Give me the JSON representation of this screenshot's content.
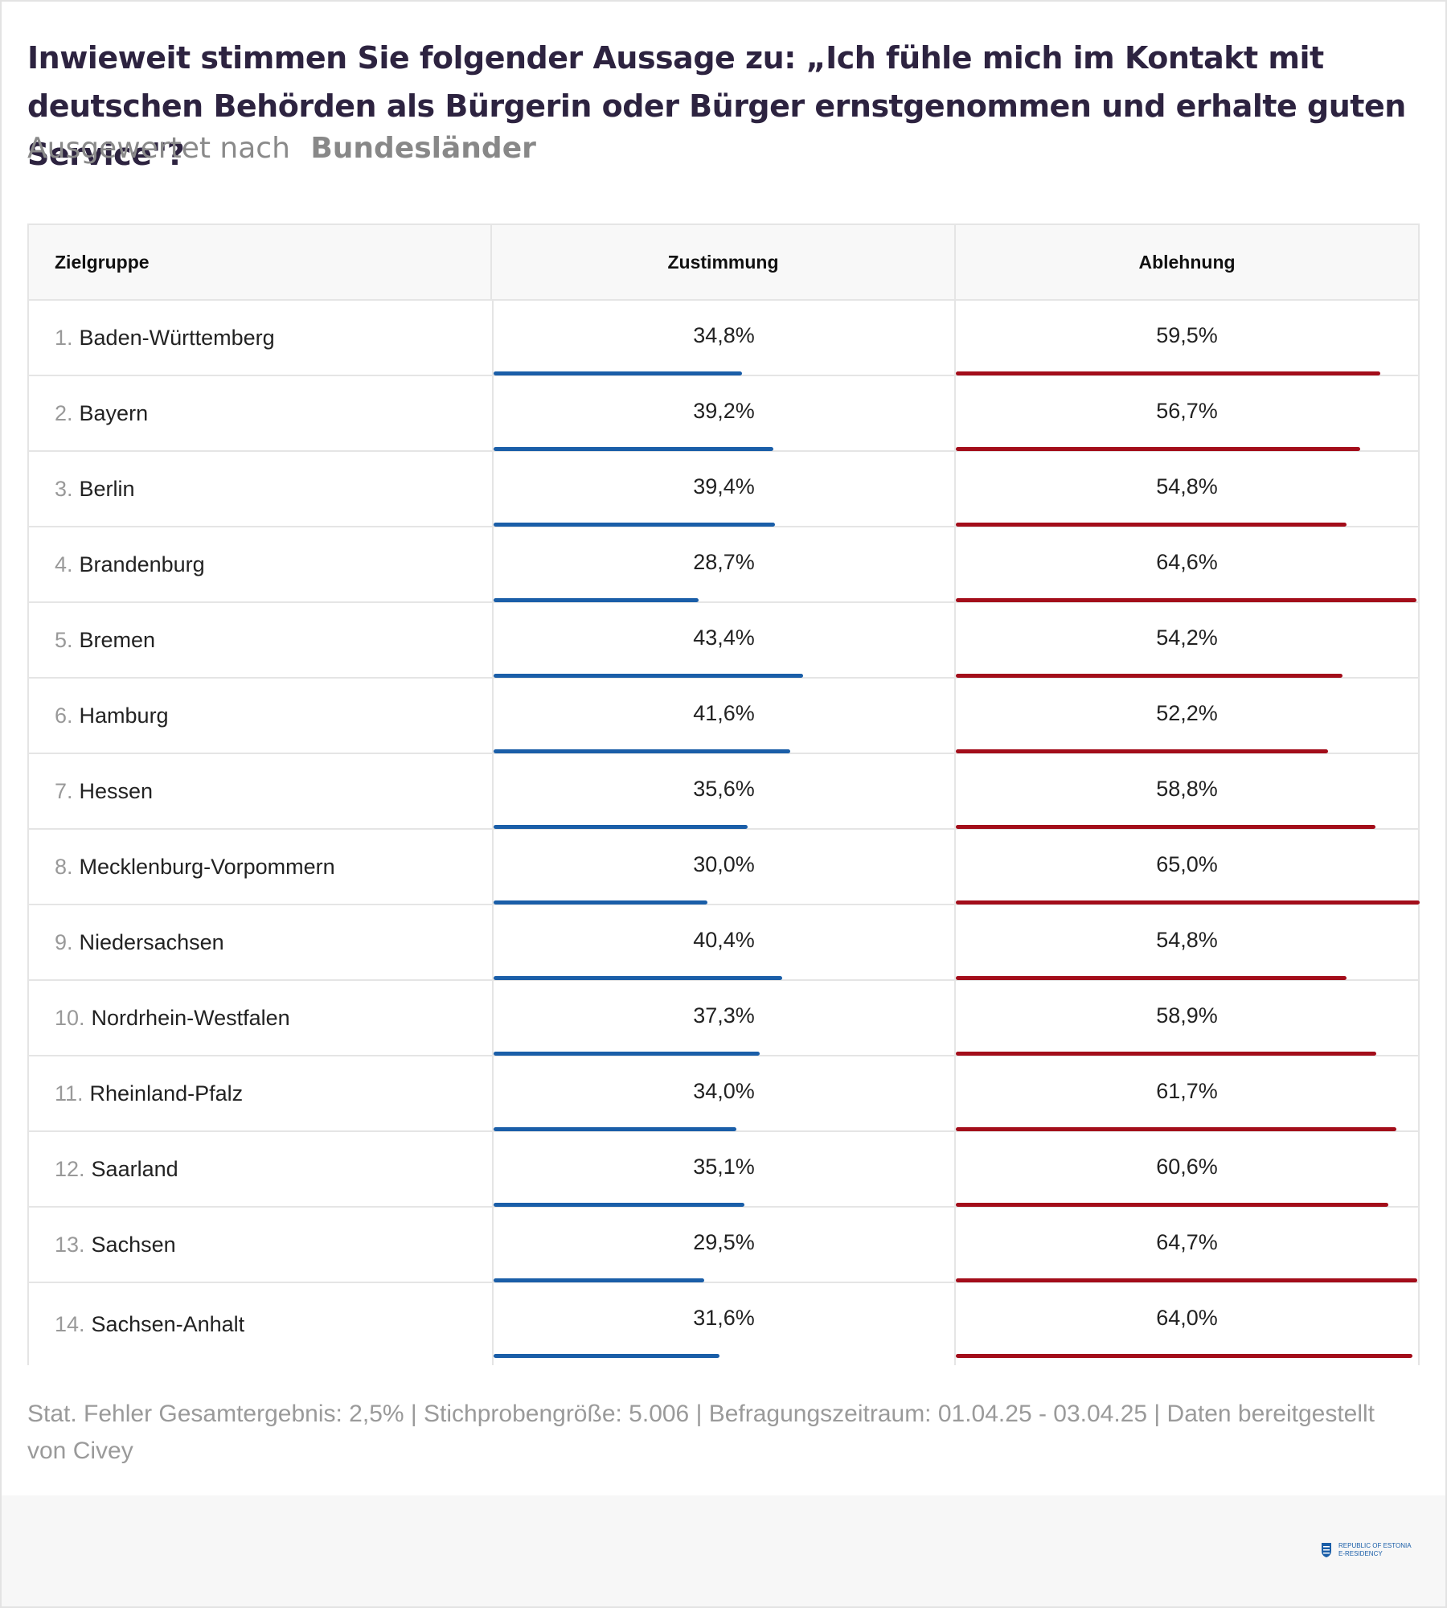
{
  "title": "Inwieweit stimmen Sie folgender Aussage zu: „Ich fühle mich im Kontakt mit deutschen Behörden als Bürgerin oder Bürger ernstgenommen und erhalte guten Service\"?",
  "subtitle": {
    "prefix": "Ausgewertet nach",
    "group": "Bundesländer"
  },
  "columns": {
    "group": "Zielgruppe",
    "agree": "Zustimmung",
    "disagree": "Ablehnung"
  },
  "colors": {
    "agree": "#1a5ea8",
    "disagree": "#a30d1a"
  },
  "chart_data": {
    "type": "table",
    "title": "Inwieweit stimmen Sie folgender Aussage zu: „Ich fühle mich im Kontakt mit deutschen Behörden als Bürgerin oder Bürger ernstgenommen und erhalte guten Service\"?",
    "categories": [
      "Baden-Württemberg",
      "Bayern",
      "Berlin",
      "Brandenburg",
      "Bremen",
      "Hamburg",
      "Hessen",
      "Mecklenburg-Vorpommern",
      "Niedersachsen",
      "Nordrhein-Westfalen",
      "Rheinland-Pfalz",
      "Saarland",
      "Sachsen",
      "Sachsen-Anhalt"
    ],
    "series": [
      {
        "name": "Zustimmung",
        "values": [
          34.8,
          39.2,
          39.4,
          28.7,
          43.4,
          41.6,
          35.6,
          30.0,
          40.4,
          37.3,
          34.0,
          35.1,
          29.5,
          31.6
        ]
      },
      {
        "name": "Ablehnung",
        "values": [
          59.5,
          56.7,
          54.8,
          64.6,
          54.2,
          52.2,
          58.8,
          65.0,
          54.8,
          58.9,
          61.7,
          60.6,
          64.7,
          64.0
        ]
      }
    ],
    "rows": [
      {
        "rank": "1.",
        "name": "Baden-Württemberg",
        "agree": 34.8,
        "disagree": 59.5,
        "agree_label": "34,8%",
        "disagree_label": "59,5%"
      },
      {
        "rank": "2.",
        "name": "Bayern",
        "agree": 39.2,
        "disagree": 56.7,
        "agree_label": "39,2%",
        "disagree_label": "56,7%"
      },
      {
        "rank": "3.",
        "name": "Berlin",
        "agree": 39.4,
        "disagree": 54.8,
        "agree_label": "39,4%",
        "disagree_label": "54,8%"
      },
      {
        "rank": "4.",
        "name": "Brandenburg",
        "agree": 28.7,
        "disagree": 64.6,
        "agree_label": "28,7%",
        "disagree_label": "64,6%"
      },
      {
        "rank": "5.",
        "name": "Bremen",
        "agree": 43.4,
        "disagree": 54.2,
        "agree_label": "43,4%",
        "disagree_label": "54,2%"
      },
      {
        "rank": "6.",
        "name": "Hamburg",
        "agree": 41.6,
        "disagree": 52.2,
        "agree_label": "41,6%",
        "disagree_label": "52,2%"
      },
      {
        "rank": "7.",
        "name": "Hessen",
        "agree": 35.6,
        "disagree": 58.8,
        "agree_label": "35,6%",
        "disagree_label": "58,8%"
      },
      {
        "rank": "8.",
        "name": "Mecklenburg-Vorpommern",
        "agree": 30.0,
        "disagree": 65.0,
        "agree_label": "30,0%",
        "disagree_label": "65,0%"
      },
      {
        "rank": "9.",
        "name": "Niedersachsen",
        "agree": 40.4,
        "disagree": 54.8,
        "agree_label": "40,4%",
        "disagree_label": "54,8%"
      },
      {
        "rank": "10.",
        "name": "Nordrhein-Westfalen",
        "agree": 37.3,
        "disagree": 58.9,
        "agree_label": "37,3%",
        "disagree_label": "58,9%"
      },
      {
        "rank": "11.",
        "name": "Rheinland-Pfalz",
        "agree": 34.0,
        "disagree": 61.7,
        "agree_label": "34,0%",
        "disagree_label": "61,7%"
      },
      {
        "rank": "12.",
        "name": "Saarland",
        "agree": 35.1,
        "disagree": 60.6,
        "agree_label": "35,1%",
        "disagree_label": "60,6%"
      },
      {
        "rank": "13.",
        "name": "Sachsen",
        "agree": 29.5,
        "disagree": 64.7,
        "agree_label": "29,5%",
        "disagree_label": "64,7%"
      },
      {
        "rank": "14.",
        "name": "Sachsen-Anhalt",
        "agree": 31.6,
        "disagree": 64.0,
        "agree_label": "31,6%",
        "disagree_label": "64,0%"
      }
    ],
    "bar_scale_max": 65.0
  },
  "footer": "Stat. Fehler Gesamtergebnis: 2,5% | Stichprobengröße: 5.006 | Befragungszeitraum: 01.04.25 - 03.04.25 | Daten bereitgestellt von Civey",
  "logo": {
    "line1": "REPUBLIC OF ESTONIA",
    "line2": "E-RESIDENCY"
  }
}
